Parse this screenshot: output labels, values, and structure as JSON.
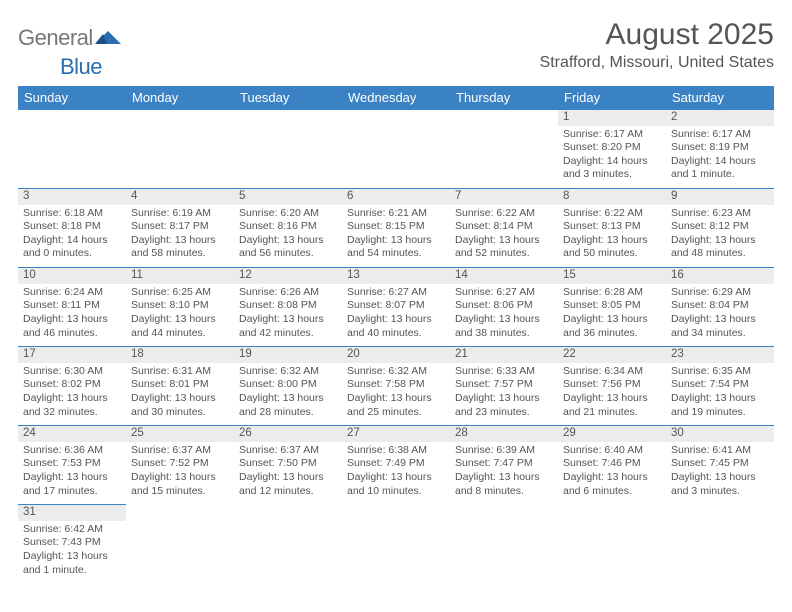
{
  "logo": {
    "part1": "General",
    "part2": "Blue",
    "color_gray": "#777777",
    "color_blue": "#2a6db0"
  },
  "title": "August 2025",
  "location": "Strafford, Missouri, United States",
  "colors": {
    "header_bg": "#3b82c4",
    "header_fg": "#ffffff",
    "daynum_bg": "#ececec",
    "text": "#555555",
    "rule": "#3b82c4"
  },
  "fonts": {
    "title_size": 30,
    "location_size": 16,
    "header_size": 13,
    "daynum_size": 11.5,
    "detail_size": 10.5
  },
  "days_of_week": [
    "Sunday",
    "Monday",
    "Tuesday",
    "Wednesday",
    "Thursday",
    "Friday",
    "Saturday"
  ],
  "weeks": [
    [
      null,
      null,
      null,
      null,
      null,
      {
        "n": "1",
        "sunrise": "Sunrise: 6:17 AM",
        "sunset": "Sunset: 8:20 PM",
        "day1": "Daylight: 14 hours",
        "day2": "and 3 minutes."
      },
      {
        "n": "2",
        "sunrise": "Sunrise: 6:17 AM",
        "sunset": "Sunset: 8:19 PM",
        "day1": "Daylight: 14 hours",
        "day2": "and 1 minute."
      }
    ],
    [
      {
        "n": "3",
        "sunrise": "Sunrise: 6:18 AM",
        "sunset": "Sunset: 8:18 PM",
        "day1": "Daylight: 14 hours",
        "day2": "and 0 minutes."
      },
      {
        "n": "4",
        "sunrise": "Sunrise: 6:19 AM",
        "sunset": "Sunset: 8:17 PM",
        "day1": "Daylight: 13 hours",
        "day2": "and 58 minutes."
      },
      {
        "n": "5",
        "sunrise": "Sunrise: 6:20 AM",
        "sunset": "Sunset: 8:16 PM",
        "day1": "Daylight: 13 hours",
        "day2": "and 56 minutes."
      },
      {
        "n": "6",
        "sunrise": "Sunrise: 6:21 AM",
        "sunset": "Sunset: 8:15 PM",
        "day1": "Daylight: 13 hours",
        "day2": "and 54 minutes."
      },
      {
        "n": "7",
        "sunrise": "Sunrise: 6:22 AM",
        "sunset": "Sunset: 8:14 PM",
        "day1": "Daylight: 13 hours",
        "day2": "and 52 minutes."
      },
      {
        "n": "8",
        "sunrise": "Sunrise: 6:22 AM",
        "sunset": "Sunset: 8:13 PM",
        "day1": "Daylight: 13 hours",
        "day2": "and 50 minutes."
      },
      {
        "n": "9",
        "sunrise": "Sunrise: 6:23 AM",
        "sunset": "Sunset: 8:12 PM",
        "day1": "Daylight: 13 hours",
        "day2": "and 48 minutes."
      }
    ],
    [
      {
        "n": "10",
        "sunrise": "Sunrise: 6:24 AM",
        "sunset": "Sunset: 8:11 PM",
        "day1": "Daylight: 13 hours",
        "day2": "and 46 minutes."
      },
      {
        "n": "11",
        "sunrise": "Sunrise: 6:25 AM",
        "sunset": "Sunset: 8:10 PM",
        "day1": "Daylight: 13 hours",
        "day2": "and 44 minutes."
      },
      {
        "n": "12",
        "sunrise": "Sunrise: 6:26 AM",
        "sunset": "Sunset: 8:08 PM",
        "day1": "Daylight: 13 hours",
        "day2": "and 42 minutes."
      },
      {
        "n": "13",
        "sunrise": "Sunrise: 6:27 AM",
        "sunset": "Sunset: 8:07 PM",
        "day1": "Daylight: 13 hours",
        "day2": "and 40 minutes."
      },
      {
        "n": "14",
        "sunrise": "Sunrise: 6:27 AM",
        "sunset": "Sunset: 8:06 PM",
        "day1": "Daylight: 13 hours",
        "day2": "and 38 minutes."
      },
      {
        "n": "15",
        "sunrise": "Sunrise: 6:28 AM",
        "sunset": "Sunset: 8:05 PM",
        "day1": "Daylight: 13 hours",
        "day2": "and 36 minutes."
      },
      {
        "n": "16",
        "sunrise": "Sunrise: 6:29 AM",
        "sunset": "Sunset: 8:04 PM",
        "day1": "Daylight: 13 hours",
        "day2": "and 34 minutes."
      }
    ],
    [
      {
        "n": "17",
        "sunrise": "Sunrise: 6:30 AM",
        "sunset": "Sunset: 8:02 PM",
        "day1": "Daylight: 13 hours",
        "day2": "and 32 minutes."
      },
      {
        "n": "18",
        "sunrise": "Sunrise: 6:31 AM",
        "sunset": "Sunset: 8:01 PM",
        "day1": "Daylight: 13 hours",
        "day2": "and 30 minutes."
      },
      {
        "n": "19",
        "sunrise": "Sunrise: 6:32 AM",
        "sunset": "Sunset: 8:00 PM",
        "day1": "Daylight: 13 hours",
        "day2": "and 28 minutes."
      },
      {
        "n": "20",
        "sunrise": "Sunrise: 6:32 AM",
        "sunset": "Sunset: 7:58 PM",
        "day1": "Daylight: 13 hours",
        "day2": "and 25 minutes."
      },
      {
        "n": "21",
        "sunrise": "Sunrise: 6:33 AM",
        "sunset": "Sunset: 7:57 PM",
        "day1": "Daylight: 13 hours",
        "day2": "and 23 minutes."
      },
      {
        "n": "22",
        "sunrise": "Sunrise: 6:34 AM",
        "sunset": "Sunset: 7:56 PM",
        "day1": "Daylight: 13 hours",
        "day2": "and 21 minutes."
      },
      {
        "n": "23",
        "sunrise": "Sunrise: 6:35 AM",
        "sunset": "Sunset: 7:54 PM",
        "day1": "Daylight: 13 hours",
        "day2": "and 19 minutes."
      }
    ],
    [
      {
        "n": "24",
        "sunrise": "Sunrise: 6:36 AM",
        "sunset": "Sunset: 7:53 PM",
        "day1": "Daylight: 13 hours",
        "day2": "and 17 minutes."
      },
      {
        "n": "25",
        "sunrise": "Sunrise: 6:37 AM",
        "sunset": "Sunset: 7:52 PM",
        "day1": "Daylight: 13 hours",
        "day2": "and 15 minutes."
      },
      {
        "n": "26",
        "sunrise": "Sunrise: 6:37 AM",
        "sunset": "Sunset: 7:50 PM",
        "day1": "Daylight: 13 hours",
        "day2": "and 12 minutes."
      },
      {
        "n": "27",
        "sunrise": "Sunrise: 6:38 AM",
        "sunset": "Sunset: 7:49 PM",
        "day1": "Daylight: 13 hours",
        "day2": "and 10 minutes."
      },
      {
        "n": "28",
        "sunrise": "Sunrise: 6:39 AM",
        "sunset": "Sunset: 7:47 PM",
        "day1": "Daylight: 13 hours",
        "day2": "and 8 minutes."
      },
      {
        "n": "29",
        "sunrise": "Sunrise: 6:40 AM",
        "sunset": "Sunset: 7:46 PM",
        "day1": "Daylight: 13 hours",
        "day2": "and 6 minutes."
      },
      {
        "n": "30",
        "sunrise": "Sunrise: 6:41 AM",
        "sunset": "Sunset: 7:45 PM",
        "day1": "Daylight: 13 hours",
        "day2": "and 3 minutes."
      }
    ],
    [
      {
        "n": "31",
        "sunrise": "Sunrise: 6:42 AM",
        "sunset": "Sunset: 7:43 PM",
        "day1": "Daylight: 13 hours",
        "day2": "and 1 minute."
      },
      null,
      null,
      null,
      null,
      null,
      null
    ]
  ]
}
